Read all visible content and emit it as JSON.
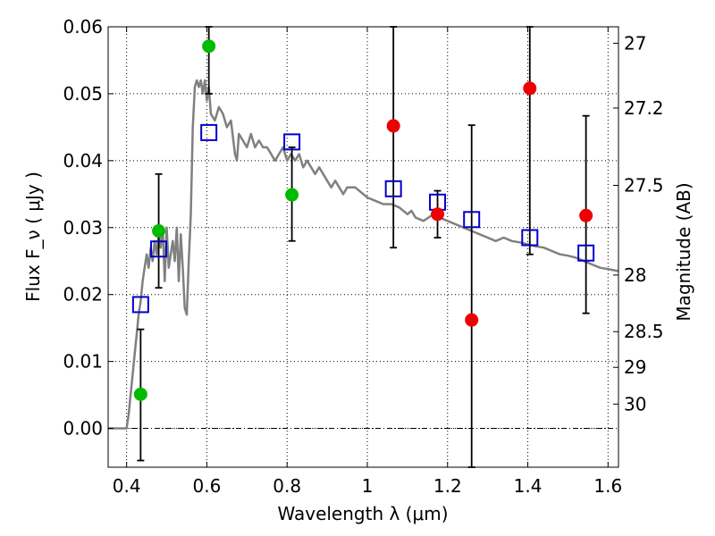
{
  "chart_data": {
    "type": "scatter",
    "xlabel": "Wavelength  λ (μm)",
    "ylabel": "Flux  F_ν  ( μJy )",
    "y2label": "Magnitude (AB)",
    "xlim": [
      0.354,
      1.626
    ],
    "ylim": [
      -0.0058,
      0.06
    ],
    "x_ticks": [
      0.4,
      0.6,
      0.8,
      1.0,
      1.2,
      1.4,
      1.6
    ],
    "x_tick_labels": [
      "0.4",
      "0.6",
      "0.8",
      "1",
      "1.2",
      "1.4",
      "1.6"
    ],
    "y_ticks": [
      0.0,
      0.01,
      0.02,
      0.03,
      0.04,
      0.05,
      0.06
    ],
    "y_tick_labels": [
      "0.00",
      "0.01",
      "0.02",
      "0.03",
      "0.04",
      "0.05",
      "0.06"
    ],
    "mag_ticks": [
      27,
      27.2,
      27.5,
      28,
      28.5,
      29,
      30
    ],
    "mag_tick_labels": [
      "27",
      "27.2",
      "27.5",
      "28",
      "28.5",
      "29",
      "30"
    ],
    "grid": true,
    "colors": {
      "green": "#00bb00",
      "red": "#ee0000",
      "model_square": "#0000cc",
      "sed_line": "#808080",
      "errorbar": "#000000"
    },
    "sed_model": {
      "x": [
        0.354,
        0.4,
        0.405,
        0.41,
        0.415,
        0.42,
        0.425,
        0.43,
        0.435,
        0.44,
        0.445,
        0.45,
        0.455,
        0.46,
        0.465,
        0.47,
        0.475,
        0.48,
        0.485,
        0.49,
        0.495,
        0.5,
        0.505,
        0.51,
        0.515,
        0.52,
        0.525,
        0.53,
        0.535,
        0.54,
        0.545,
        0.55,
        0.555,
        0.56,
        0.565,
        0.57,
        0.575,
        0.58,
        0.585,
        0.59,
        0.595,
        0.6,
        0.605,
        0.61,
        0.62,
        0.63,
        0.64,
        0.65,
        0.66,
        0.67,
        0.675,
        0.68,
        0.69,
        0.7,
        0.71,
        0.72,
        0.73,
        0.74,
        0.75,
        0.76,
        0.77,
        0.78,
        0.79,
        0.8,
        0.81,
        0.82,
        0.83,
        0.84,
        0.85,
        0.86,
        0.87,
        0.88,
        0.89,
        0.9,
        0.91,
        0.92,
        0.93,
        0.94,
        0.95,
        0.96,
        0.97,
        0.98,
        0.99,
        1.0,
        1.02,
        1.04,
        1.06,
        1.08,
        1.1,
        1.11,
        1.12,
        1.14,
        1.16,
        1.18,
        1.2,
        1.22,
        1.24,
        1.26,
        1.28,
        1.3,
        1.32,
        1.34,
        1.36,
        1.38,
        1.4,
        1.42,
        1.44,
        1.46,
        1.48,
        1.5,
        1.52,
        1.54,
        1.56,
        1.58,
        1.6,
        1.626
      ],
      "y": [
        0.0,
        0.0,
        0.002,
        0.005,
        0.008,
        0.011,
        0.014,
        0.017,
        0.019,
        0.022,
        0.024,
        0.026,
        0.024,
        0.027,
        0.025,
        0.028,
        0.026,
        0.029,
        0.027,
        0.03,
        0.022,
        0.03,
        0.024,
        0.026,
        0.028,
        0.025,
        0.03,
        0.022,
        0.029,
        0.024,
        0.018,
        0.017,
        0.025,
        0.032,
        0.045,
        0.051,
        0.052,
        0.051,
        0.052,
        0.05,
        0.052,
        0.049,
        0.051,
        0.047,
        0.046,
        0.048,
        0.047,
        0.045,
        0.046,
        0.041,
        0.04,
        0.044,
        0.043,
        0.042,
        0.044,
        0.042,
        0.043,
        0.042,
        0.042,
        0.041,
        0.04,
        0.041,
        0.042,
        0.04,
        0.041,
        0.04,
        0.041,
        0.039,
        0.04,
        0.039,
        0.038,
        0.039,
        0.038,
        0.037,
        0.036,
        0.037,
        0.036,
        0.035,
        0.036,
        0.036,
        0.036,
        0.0355,
        0.035,
        0.0345,
        0.034,
        0.0335,
        0.0335,
        0.033,
        0.032,
        0.0325,
        0.0315,
        0.031,
        0.0318,
        0.0315,
        0.031,
        0.0305,
        0.03,
        0.0295,
        0.029,
        0.0285,
        0.028,
        0.0285,
        0.028,
        0.0278,
        0.0275,
        0.0272,
        0.027,
        0.0265,
        0.026,
        0.0258,
        0.0255,
        0.025,
        0.0245,
        0.024,
        0.0238,
        0.0235
      ]
    },
    "model_squares": {
      "x": [
        0.435,
        0.48,
        0.605,
        0.812,
        1.065,
        1.175,
        1.26,
        1.405,
        1.545
      ],
      "y": [
        0.0185,
        0.0268,
        0.0442,
        0.0428,
        0.0358,
        0.0338,
        0.0312,
        0.0285,
        0.0262
      ]
    },
    "series": [
      {
        "name": "green detections",
        "color": "green",
        "x": [
          0.435,
          0.48,
          0.605,
          0.812
        ],
        "y": [
          0.0051,
          0.0295,
          0.0571,
          0.0349
        ],
        "yerr_lo": [
          -0.0048,
          0.021,
          0.05,
          0.028
        ],
        "yerr_hi": [
          0.0148,
          0.038,
          0.06,
          0.042
        ]
      },
      {
        "name": "red detections",
        "color": "red",
        "x": [
          1.065,
          1.175,
          1.26,
          1.405,
          1.545
        ],
        "y": [
          0.0452,
          0.032,
          0.0162,
          0.0508,
          0.0318
        ],
        "yerr_lo": [
          0.027,
          0.0285,
          -0.0058,
          0.026,
          0.0172
        ],
        "yerr_hi": [
          0.06,
          0.0355,
          0.0453,
          0.06,
          0.0467
        ]
      }
    ]
  }
}
